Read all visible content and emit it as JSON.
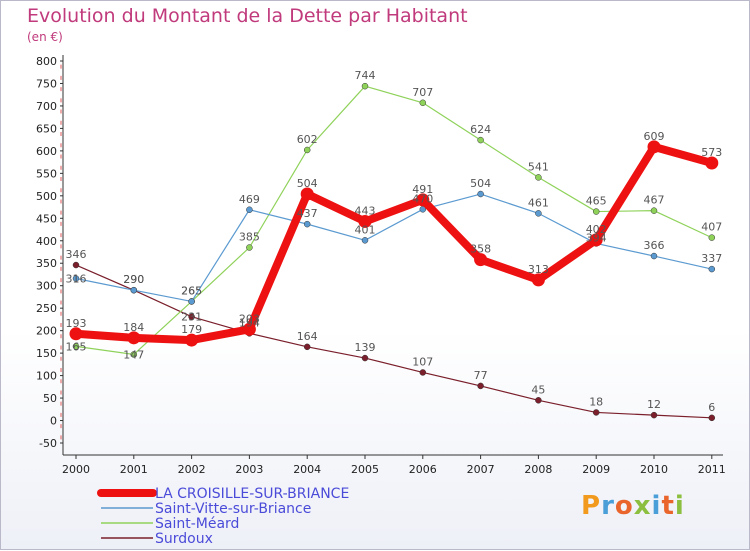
{
  "title": "Evolution du Montant de la Dette par Habitant",
  "unit": "(en €)",
  "logo": {
    "text": "Proxiti",
    "colors": [
      "#f29a1d",
      "#4a9fd8",
      "#e9652c",
      "#8cbf3f",
      "#4a9fd8",
      "#e9652c",
      "#8cbf3f"
    ]
  },
  "chart_data": {
    "type": "line",
    "title": "Evolution du Montant de la Dette par Habitant",
    "ylabel": "(en €)",
    "xlabel": "",
    "ylim": [
      -50,
      800
    ],
    "yticks": [
      -50,
      0,
      50,
      100,
      150,
      200,
      250,
      300,
      350,
      400,
      450,
      500,
      550,
      600,
      650,
      700,
      750,
      800
    ],
    "grid": false,
    "legend_position": "bottom-left",
    "x": [
      "2000",
      "2001",
      "2002",
      "2003",
      "2004",
      "2005",
      "2006",
      "2007",
      "2008",
      "2009",
      "2010",
      "2011"
    ],
    "series": [
      {
        "name": "Surdoux",
        "color": "#7a1f2b",
        "values": [
          346,
          290,
          231,
          194,
          164,
          139,
          107,
          77,
          45,
          18,
          12,
          6
        ]
      },
      {
        "name": "Saint-Méard",
        "color": "#8fd25a",
        "values": [
          165,
          147,
          265,
          385,
          602,
          744,
          707,
          624,
          541,
          465,
          467,
          407
        ]
      },
      {
        "name": "Saint-Vitte-sur-Briance",
        "color": "#5b9ad0",
        "values": [
          316,
          290,
          265,
          469,
          437,
          401,
          470,
          504,
          461,
          394,
          366,
          337
        ]
      },
      {
        "name": "LA CROISILLE-SUR-BRIANCE",
        "color": "#ee1111",
        "values": [
          193,
          184,
          179,
          203,
          504,
          443,
          491,
          358,
          313,
          402,
          609,
          573
        ]
      }
    ],
    "data_labels": [
      {
        "x": "2000",
        "text": "346",
        "v": 346,
        "dy": -7
      },
      {
        "x": "2000",
        "text": "316",
        "v": 316,
        "dy": 4
      },
      {
        "x": "2000",
        "text": "193",
        "v": 193,
        "dy": -7
      },
      {
        "x": "2000",
        "text": "165",
        "v": 165,
        "dy": 4
      },
      {
        "x": "2001",
        "text": "290",
        "v": 290,
        "dy": -7
      },
      {
        "x": "2001",
        "text": "290",
        "v": 290,
        "dy": -7
      },
      {
        "x": "2001",
        "text": "184",
        "v": 184,
        "dy": -7
      },
      {
        "x": "2001",
        "text": "147",
        "v": 147,
        "dy": 4
      },
      {
        "x": "2002",
        "text": "265",
        "v": 265,
        "dy": -7
      },
      {
        "x": "2002",
        "text": "265",
        "v": 265,
        "dy": -7
      },
      {
        "x": "2002",
        "text": "231",
        "v": 231,
        "dy": 4
      },
      {
        "x": "2002",
        "text": "179",
        "v": 179,
        "dy": -7
      },
      {
        "x": "2003",
        "text": "469",
        "v": 469,
        "dy": -7
      },
      {
        "x": "2003",
        "text": "385",
        "v": 385,
        "dy": -7
      },
      {
        "x": "2003",
        "text": "203",
        "v": 203,
        "dy": -7
      },
      {
        "x": "2003",
        "text": "194",
        "v": 194,
        "dy": -7
      },
      {
        "x": "2004",
        "text": "602",
        "v": 602,
        "dy": -7
      },
      {
        "x": "2004",
        "text": "504",
        "v": 504,
        "dy": -7
      },
      {
        "x": "2004",
        "text": "437",
        "v": 437,
        "dy": -7
      },
      {
        "x": "2004",
        "text": "164",
        "v": 164,
        "dy": -7
      },
      {
        "x": "2005",
        "text": "744",
        "v": 744,
        "dy": -7
      },
      {
        "x": "2005",
        "text": "443",
        "v": 443,
        "dy": -7
      },
      {
        "x": "2005",
        "text": "401",
        "v": 401,
        "dy": -7
      },
      {
        "x": "2005",
        "text": "139",
        "v": 139,
        "dy": -7
      },
      {
        "x": "2006",
        "text": "707",
        "v": 707,
        "dy": -7
      },
      {
        "x": "2006",
        "text": "491",
        "v": 491,
        "dy": -7
      },
      {
        "x": "2006",
        "text": "470",
        "v": 470,
        "dy": -7
      },
      {
        "x": "2006",
        "text": "107",
        "v": 107,
        "dy": -7
      },
      {
        "x": "2007",
        "text": "624",
        "v": 624,
        "dy": -7
      },
      {
        "x": "2007",
        "text": "504",
        "v": 504,
        "dy": -7
      },
      {
        "x": "2007",
        "text": "358",
        "v": 358,
        "dy": -7
      },
      {
        "x": "2007",
        "text": "77",
        "v": 77,
        "dy": -7
      },
      {
        "x": "2008",
        "text": "541",
        "v": 541,
        "dy": -7
      },
      {
        "x": "2008",
        "text": "461",
        "v": 461,
        "dy": -7
      },
      {
        "x": "2008",
        "text": "313",
        "v": 313,
        "dy": -7
      },
      {
        "x": "2008",
        "text": "45",
        "v": 45,
        "dy": -7
      },
      {
        "x": "2009",
        "text": "465",
        "v": 465,
        "dy": -7
      },
      {
        "x": "2009",
        "text": "402",
        "v": 402,
        "dy": -7
      },
      {
        "x": "2009",
        "text": "394",
        "v": 394,
        "dy": -2
      },
      {
        "x": "2009",
        "text": "18",
        "v": 18,
        "dy": -7
      },
      {
        "x": "2010",
        "text": "609",
        "v": 609,
        "dy": -7
      },
      {
        "x": "2010",
        "text": "467",
        "v": 467,
        "dy": -7
      },
      {
        "x": "2010",
        "text": "366",
        "v": 366,
        "dy": -7
      },
      {
        "x": "2010",
        "text": "12",
        "v": 12,
        "dy": -7
      },
      {
        "x": "2011",
        "text": "573",
        "v": 573,
        "dy": -7
      },
      {
        "x": "2011",
        "text": "407",
        "v": 407,
        "dy": -7
      },
      {
        "x": "2011",
        "text": "337",
        "v": 337,
        "dy": -7
      },
      {
        "x": "2011",
        "text": "6",
        "v": 6,
        "dy": -7
      }
    ],
    "legend": [
      {
        "name": "LA CROISILLE-SUR-BRIANCE",
        "color": "#ee1111",
        "thick": true
      },
      {
        "name": "Saint-Vitte-sur-Briance",
        "color": "#5b9ad0",
        "thick": false
      },
      {
        "name": "Saint-Méard",
        "color": "#8fd25a",
        "thick": false
      },
      {
        "name": "Surdoux",
        "color": "#7a1f2b",
        "thick": false
      }
    ]
  }
}
